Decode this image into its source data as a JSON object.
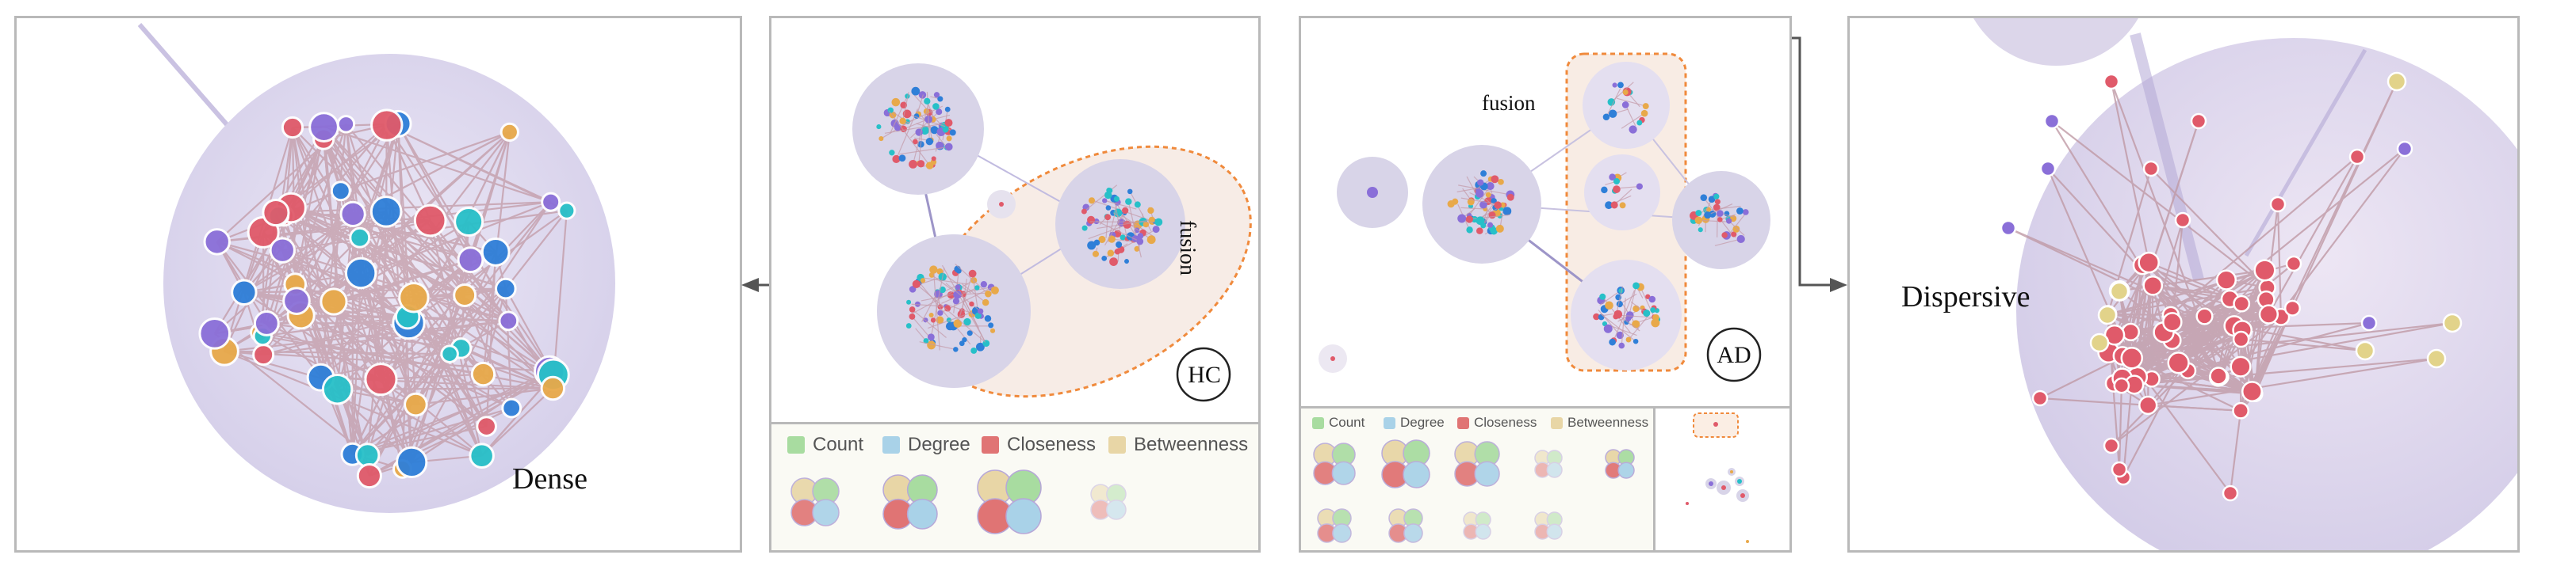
{
  "labels": {
    "dense": "Dense",
    "dispersive": "Dispersive",
    "fusion_hc": "fusion",
    "fusion_ad": "fusion",
    "hc_badge": "HC",
    "ad_badge": "AD"
  },
  "legend": {
    "items": [
      {
        "label": "Count",
        "color": "#a8dca0"
      },
      {
        "label": "Degree",
        "color": "#a9d2e8"
      },
      {
        "label": "Closeness",
        "color": "#e07474"
      },
      {
        "label": "Betweenness",
        "color": "#e8d6a6"
      }
    ]
  },
  "colors": {
    "dense_bg": "#dcd8ec",
    "node_blue": "#2f7fd8",
    "node_cyan": "#27c0c8",
    "node_orange": "#e8a94a",
    "node_purple": "#8a6fd8",
    "node_red": "#e05a6a",
    "node_yellow": "#e2d38a",
    "edge": "#c49aa8",
    "fusion": "#f08a3c"
  }
}
